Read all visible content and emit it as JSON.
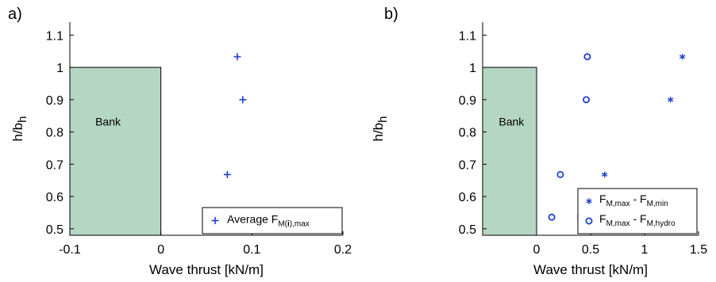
{
  "chart_data": [
    {
      "type": "scatter",
      "panel_label": "a)",
      "xlabel": "Wave thrust [kN/m]",
      "ylabel_main": "h/b",
      "ylabel_sub": "h",
      "xlim": [
        -0.1,
        0.2
      ],
      "ylim": [
        0.48,
        1.14
      ],
      "xticks": [
        -0.1,
        0,
        0.1,
        0.2
      ],
      "xtick_labels": [
        "-0.1",
        "0",
        "0.1",
        "0.2"
      ],
      "yticks": [
        0.5,
        0.6,
        0.7,
        0.8,
        0.9,
        1.0,
        1.1
      ],
      "ytick_labels": [
        "0.5",
        "0.6",
        "0.7",
        "0.8",
        "0.9",
        "1",
        "1.1"
      ],
      "bank": {
        "label": "Bank",
        "x_range": [
          -0.1,
          0
        ],
        "y_top": 1.0,
        "color": "#b5d6c3"
      },
      "legend_placement": "bottom-right",
      "series": [
        {
          "marker": "plus",
          "color": "#1f3fd6",
          "legend_main": "Average F",
          "legend_sub_prefix": "M(",
          "legend_sub_bold": "i",
          "legend_sub_suffix": "),max",
          "points": [
            {
              "x": 0.084,
              "y": 1.033
            },
            {
              "x": 0.09,
              "y": 0.9
            },
            {
              "x": 0.073,
              "y": 0.668
            },
            {
              "x": 0.053,
              "y": 0.536
            }
          ]
        }
      ]
    },
    {
      "type": "scatter",
      "panel_label": "b)",
      "xlabel": "Wave thrust [kN/m]",
      "ylabel_main": "h/b",
      "ylabel_sub": "h",
      "xlim": [
        -0.5,
        1.5
      ],
      "ylim": [
        0.48,
        1.14
      ],
      "xticks": [
        0,
        0.5,
        1,
        1.5
      ],
      "xtick_labels": [
        "0",
        "0.5",
        "1",
        "1.5"
      ],
      "yticks": [
        0.5,
        0.6,
        0.7,
        0.8,
        0.9,
        1.0,
        1.1
      ],
      "ytick_labels": [
        "0.5",
        "0.6",
        "0.7",
        "0.8",
        "0.9",
        "1",
        "1.1"
      ],
      "bank": {
        "label": "Bank",
        "x_range": [
          -0.5,
          0
        ],
        "y_top": 1.0,
        "color": "#b5d6c3"
      },
      "legend_placement": "bottom-right",
      "series": [
        {
          "marker": "asterisk",
          "color": "#1f3fd6",
          "legend_a_main": "F",
          "legend_a_sub": "M,max",
          "legend_b_main": "F",
          "legend_b_sub": "M,min",
          "points": [
            {
              "x": 1.35,
              "y": 1.033
            },
            {
              "x": 1.24,
              "y": 0.9
            },
            {
              "x": 0.63,
              "y": 0.668
            },
            {
              "x": 0.4,
              "y": 0.536
            }
          ]
        },
        {
          "marker": "circle",
          "color": "#1f3fd6",
          "legend_a_main": "F",
          "legend_a_sub": "M,max",
          "legend_b_main": "F",
          "legend_b_sub": "M,hydro",
          "points": [
            {
              "x": 0.47,
              "y": 1.033
            },
            {
              "x": 0.46,
              "y": 0.9
            },
            {
              "x": 0.22,
              "y": 0.668
            },
            {
              "x": 0.14,
              "y": 0.536
            }
          ]
        }
      ]
    }
  ]
}
